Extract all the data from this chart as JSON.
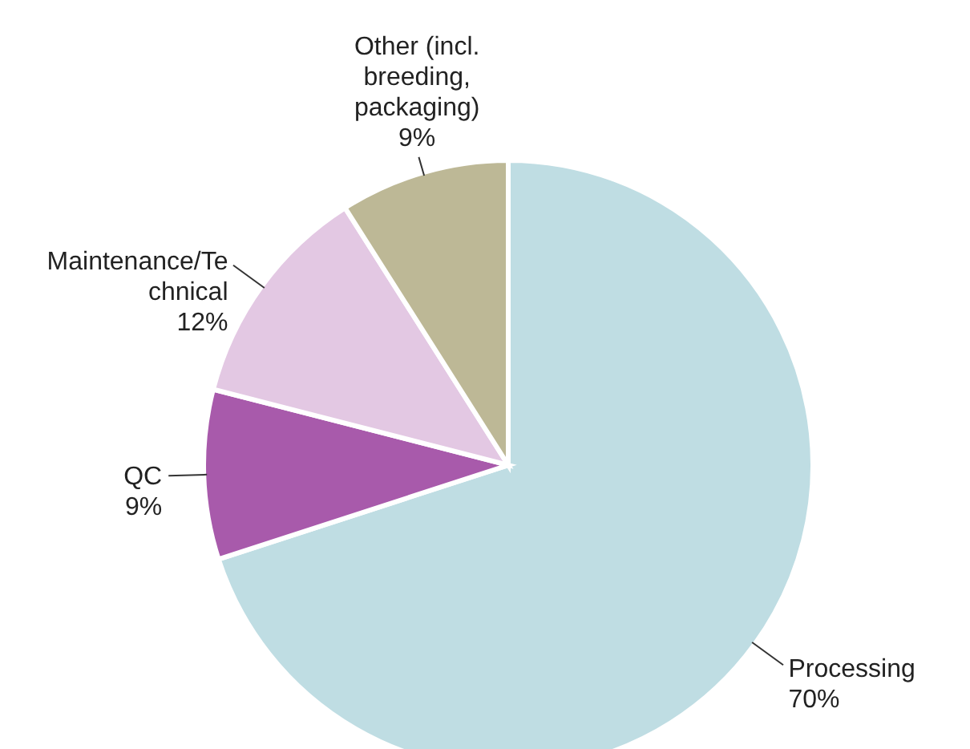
{
  "chart_data": {
    "type": "pie",
    "categories": [
      "Processing",
      "QC",
      "Maintenance/Technical",
      "Other (incl. breeding, packaging)"
    ],
    "values": [
      70,
      9,
      12,
      9
    ],
    "value_labels": [
      "70%",
      "9%",
      "12%",
      "9%"
    ],
    "colors": [
      "#bfdde3",
      "#a85aab",
      "#e3c8e3",
      "#bdb896"
    ]
  }
}
